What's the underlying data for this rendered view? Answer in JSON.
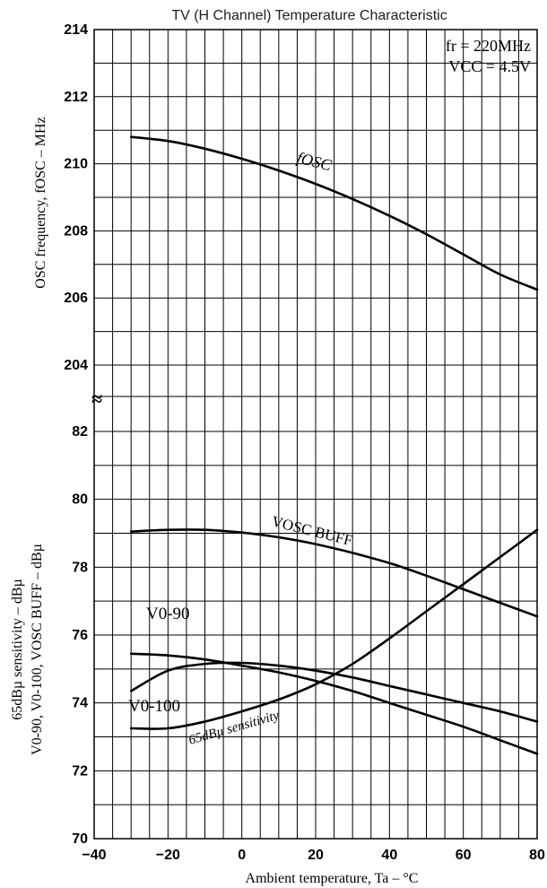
{
  "chart_data": {
    "type": "line",
    "title": "TV (H Channel) Temperature Characteristic",
    "xlabel": "Ambient temperature, Ta  –  °C",
    "x_ticks": [
      "-40",
      "-20",
      "0",
      "20",
      "40",
      "60",
      "80"
    ],
    "xlim": [
      -40,
      80
    ],
    "upper_axis": {
      "ylabel": "OSC frequency, fOSC  –  MHz",
      "ylim": [
        204,
        214
      ],
      "y_ticks": [
        "214",
        "212",
        "210",
        "208",
        "206",
        "204"
      ]
    },
    "lower_axis": {
      "ylabel_line1": "65dBµ sensitivity  –  dBµ",
      "ylabel_line2": "V0-90, V0-100, VOSC BUFF  –  dBµ",
      "ylim": [
        70,
        82
      ],
      "y_ticks": [
        "82",
        "80",
        "78",
        "76",
        "74",
        "72",
        "70"
      ]
    },
    "axis_break_symbol": "≈",
    "conditions": [
      "fr = 220MHz",
      "VCC = 4.5V"
    ],
    "series": [
      {
        "name": "fOSC",
        "axis": "upper",
        "x": [
          -30,
          -20,
          -10,
          0,
          10,
          20,
          30,
          40,
          50,
          60,
          70,
          80
        ],
        "y": [
          210.8,
          210.68,
          210.45,
          210.15,
          209.8,
          209.4,
          208.95,
          208.45,
          207.9,
          207.3,
          206.7,
          206.25
        ]
      },
      {
        "name": "VOSC BUFF",
        "axis": "lower",
        "x": [
          -30,
          -20,
          -10,
          0,
          10,
          20,
          30,
          40,
          50,
          60,
          70,
          80
        ],
        "y": [
          79.05,
          79.1,
          79.1,
          79.02,
          78.88,
          78.68,
          78.42,
          78.12,
          77.75,
          77.35,
          76.95,
          76.55
        ]
      },
      {
        "name": "V0-90",
        "axis": "lower",
        "x": [
          -30,
          -20,
          -10,
          0,
          10,
          20,
          30,
          40,
          50,
          60,
          70,
          80
        ],
        "y": [
          75.45,
          75.4,
          75.28,
          75.1,
          74.9,
          74.65,
          74.35,
          74.0,
          73.65,
          73.3,
          72.9,
          72.5
        ]
      },
      {
        "name": "V0-100",
        "axis": "lower",
        "x": [
          -30,
          -20,
          -10,
          0,
          10,
          20,
          30,
          40,
          50,
          60,
          70,
          80
        ],
        "y": [
          74.35,
          74.95,
          75.15,
          75.18,
          75.1,
          74.95,
          74.75,
          74.5,
          74.25,
          74.0,
          73.75,
          73.45
        ]
      },
      {
        "name": "65dBµ sensitivity",
        "axis": "lower",
        "x": [
          -30,
          -20,
          -10,
          0,
          10,
          20,
          30,
          40,
          50,
          60,
          70,
          80
        ],
        "y": [
          73.25,
          73.25,
          73.45,
          73.75,
          74.1,
          74.55,
          75.15,
          75.9,
          76.7,
          77.5,
          78.3,
          79.1
        ]
      }
    ]
  }
}
